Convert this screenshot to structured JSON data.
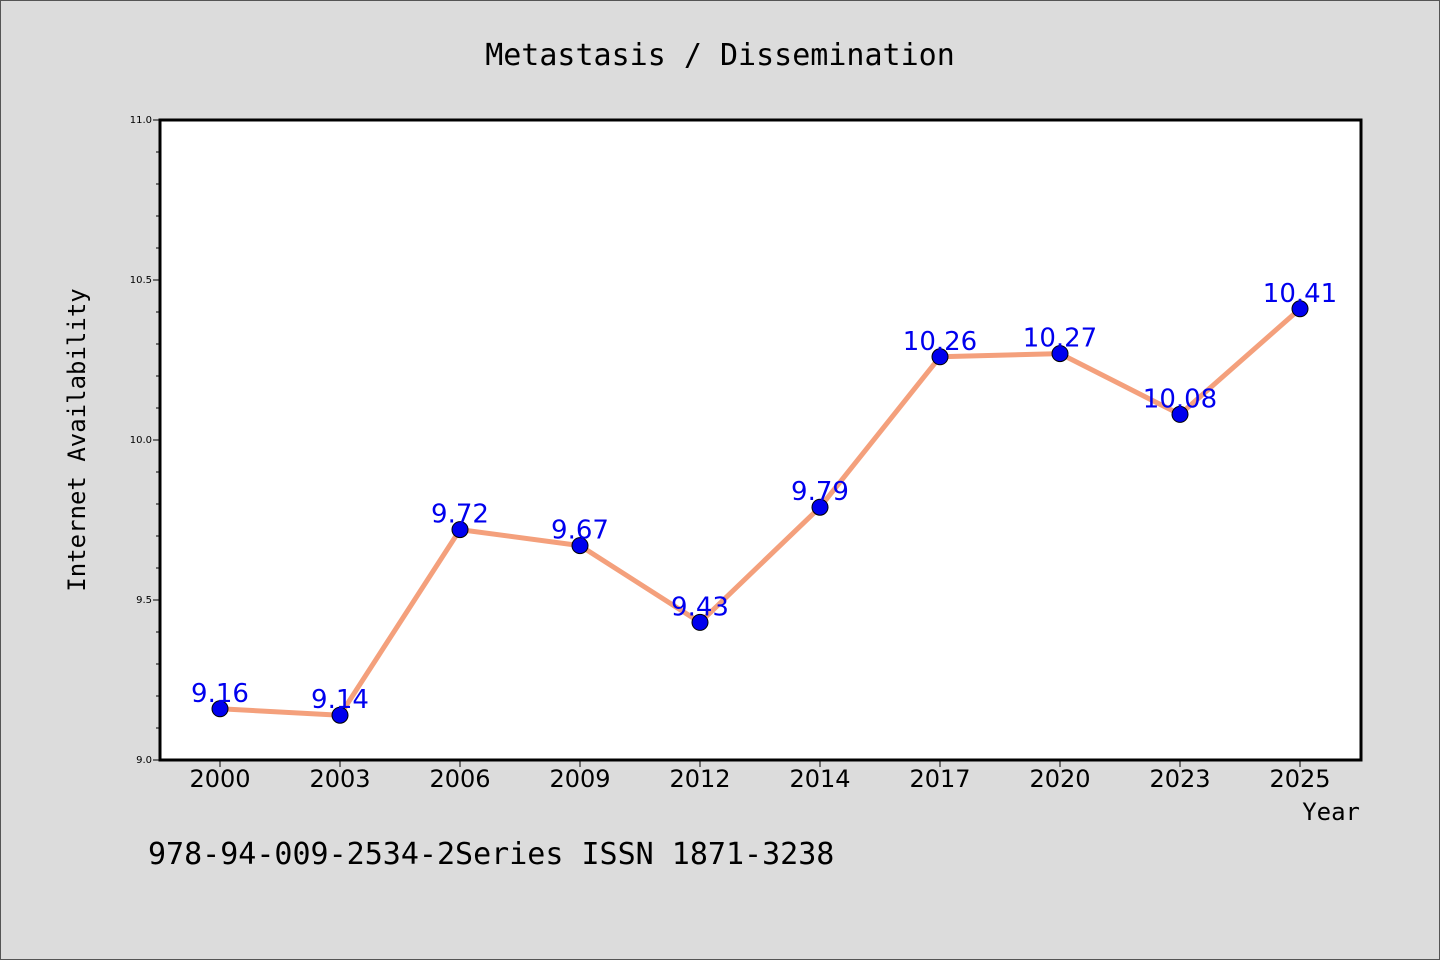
{
  "chart_data": {
    "type": "line",
    "title": "Metastasis / Dissemination",
    "xlabel": "Year",
    "ylabel": "Internet Availability",
    "categories": [
      "2000",
      "2003",
      "2006",
      "2009",
      "2012",
      "2014",
      "2017",
      "2020",
      "2023",
      "2025"
    ],
    "series": [
      {
        "values": [
          9.16,
          9.14,
          9.72,
          9.67,
          9.43,
          9.79,
          10.26,
          10.27,
          10.08,
          10.41
        ]
      }
    ],
    "data_labels": [
      "9.16",
      "9.14",
      "9.72",
      "9.67",
      "9.43",
      "9.79",
      "10.26",
      "10.27",
      "10.08",
      "10.41"
    ],
    "ylim": [
      9.0,
      11.0
    ],
    "y_ticks": [
      "9.0",
      "9.5",
      "10.0",
      "10.5",
      "11.0"
    ],
    "grid": false,
    "colors": {
      "line": "#f4a07c",
      "marker": "#0000ee",
      "label": "#0000ee",
      "background": "#dcdcdc",
      "plot_bg": "#ffffff"
    }
  },
  "footer_text": "978-94-009-2534-2Series ISSN 1871-3238"
}
